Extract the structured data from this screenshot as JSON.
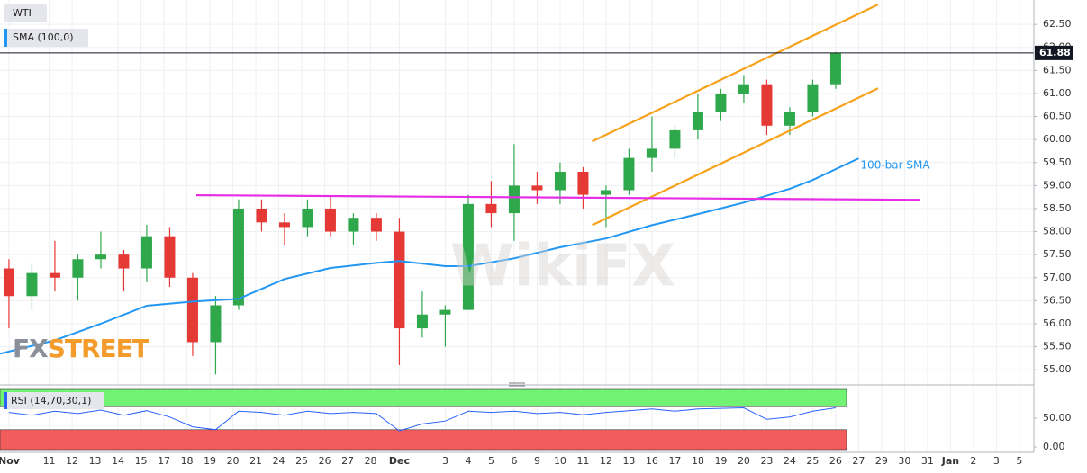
{
  "chart_data": [
    {
      "type": "candlestick",
      "title": "WTI",
      "x": [
        0,
        1,
        2,
        3,
        4,
        5,
        6,
        7,
        8,
        9,
        10,
        11,
        12,
        13,
        14,
        15,
        16,
        17,
        18,
        19,
        20,
        21,
        22,
        23,
        24,
        25,
        26,
        27,
        28,
        29,
        30,
        31,
        32,
        33,
        34,
        35,
        36
      ],
      "open": [
        57.2,
        56.6,
        57.1,
        57.0,
        57.4,
        57.5,
        57.2,
        57.9,
        57.0,
        55.6,
        56.4,
        58.5,
        58.2,
        58.1,
        58.5,
        58.0,
        58.3,
        58.0,
        55.9,
        56.2,
        56.3,
        58.6,
        58.4,
        59.0,
        58.9,
        59.3,
        58.8,
        58.9,
        59.6,
        59.8,
        60.2,
        60.6,
        61.0,
        61.2,
        60.3,
        60.6,
        61.2
      ],
      "high": [
        57.4,
        57.3,
        57.8,
        57.5,
        58.0,
        57.6,
        58.15,
        58.1,
        57.1,
        56.6,
        58.7,
        58.7,
        58.4,
        58.7,
        58.75,
        58.4,
        58.4,
        58.3,
        56.7,
        56.4,
        58.8,
        59.1,
        59.9,
        59.3,
        59.5,
        59.4,
        59.0,
        59.8,
        60.5,
        60.3,
        61.0,
        61.1,
        61.4,
        61.3,
        60.7,
        61.3,
        61.9
      ],
      "low": [
        55.9,
        56.3,
        56.7,
        56.5,
        57.2,
        56.7,
        56.9,
        56.8,
        55.3,
        54.9,
        56.3,
        58.0,
        57.7,
        57.9,
        57.9,
        57.7,
        57.8,
        55.1,
        55.7,
        55.5,
        56.3,
        58.1,
        57.8,
        58.6,
        58.6,
        58.5,
        58.1,
        58.8,
        59.3,
        59.6,
        60.0,
        60.4,
        60.8,
        60.1,
        60.1,
        60.5,
        61.1
      ],
      "close": [
        56.6,
        57.1,
        57.0,
        57.4,
        57.5,
        57.2,
        57.9,
        57.0,
        55.6,
        56.4,
        58.5,
        58.2,
        58.1,
        58.5,
        58.0,
        58.3,
        58.0,
        55.9,
        56.2,
        56.3,
        58.6,
        58.4,
        59.0,
        58.9,
        59.3,
        58.8,
        58.9,
        59.6,
        59.8,
        60.2,
        60.6,
        61.0,
        61.2,
        60.3,
        60.6,
        61.2,
        61.88
      ],
      "up_color": "#2ea84a",
      "down_color": "#e53935",
      "overlays": [
        {
          "name": "SMA (100,0)",
          "annotation": "100-bar SMA",
          "color": "#2196f3",
          "x": [
            -0.39,
            2,
            4,
            6,
            8,
            10,
            12,
            14,
            16,
            17,
            19,
            20,
            22,
            24,
            26,
            28,
            30,
            32,
            34,
            35,
            37
          ],
          "values": [
            55.35,
            55.64,
            56.0,
            56.39,
            56.48,
            56.54,
            56.97,
            57.21,
            57.32,
            57.36,
            57.25,
            57.25,
            57.42,
            57.66,
            57.85,
            58.14,
            58.38,
            58.63,
            58.93,
            59.12,
            59.59
          ]
        }
      ],
      "trendlines": [
        {
          "color": "#f7a21b",
          "x": [
            25.4,
            37.84
          ],
          "values": [
            59.96,
            62.93
          ]
        },
        {
          "color": "#f7a21b",
          "x": [
            25.4,
            37.84
          ],
          "values": [
            58.14,
            61.11
          ]
        },
        {
          "color": "#e62ee6",
          "x": [
            8.16,
            39.69
          ],
          "values": [
            58.79,
            58.69
          ]
        }
      ],
      "last_price": 61.88,
      "last_price_color": "#131722",
      "brand": {
        "prefix": "FX",
        "suffix": "STREET"
      },
      "watermark": "WikiFX",
      "xlim": [
        -0.39,
        44.63
      ],
      "ylim": [
        54.73,
        63.03
      ],
      "grid": true,
      "yticks": [
        {
          "value": 55,
          "label": "55.00"
        },
        {
          "value": 55.5,
          "label": "55.50"
        },
        {
          "value": 56,
          "label": "56.00"
        },
        {
          "value": 56.5,
          "label": "56.50"
        },
        {
          "value": 57,
          "label": "57.00"
        },
        {
          "value": 57.5,
          "label": "57.50"
        },
        {
          "value": 58,
          "label": "58.00"
        },
        {
          "value": 58.5,
          "label": "58.50"
        },
        {
          "value": 59,
          "label": "59.00"
        },
        {
          "value": 59.5,
          "label": "59.50"
        },
        {
          "value": 60,
          "label": "60.00"
        },
        {
          "value": 60.5,
          "label": "60.50"
        },
        {
          "value": 61,
          "label": "61.00"
        },
        {
          "value": 61.5,
          "label": "61.50"
        },
        {
          "value": 62,
          "label": "62.00"
        },
        {
          "value": 62.5,
          "label": "62.50"
        }
      ],
      "xticks": [
        {
          "value": 0,
          "label": "Nov"
        },
        {
          "value": 1.75,
          "label": "11"
        },
        {
          "value": 2.75,
          "label": "12"
        },
        {
          "value": 3.75,
          "label": "13"
        },
        {
          "value": 4.75,
          "label": "14"
        },
        {
          "value": 5.75,
          "label": "15"
        },
        {
          "value": 6.75,
          "label": "17"
        },
        {
          "value": 7.75,
          "label": "18"
        },
        {
          "value": 8.75,
          "label": "19"
        },
        {
          "value": 9.75,
          "label": "20"
        },
        {
          "value": 10.75,
          "label": "21"
        },
        {
          "value": 11.75,
          "label": "24"
        },
        {
          "value": 12.75,
          "label": "25"
        },
        {
          "value": 13.75,
          "label": "26"
        },
        {
          "value": 14.75,
          "label": "27"
        },
        {
          "value": 15.75,
          "label": "28"
        },
        {
          "value": 17,
          "label": "Dec"
        },
        {
          "value": 19,
          "label": "3"
        },
        {
          "value": 20,
          "label": "4"
        },
        {
          "value": 21,
          "label": "5"
        },
        {
          "value": 22,
          "label": "6"
        },
        {
          "value": 23,
          "label": "9"
        },
        {
          "value": 24,
          "label": "10"
        },
        {
          "value": 25,
          "label": "11"
        },
        {
          "value": 26,
          "label": "12"
        },
        {
          "value": 27,
          "label": "13"
        },
        {
          "value": 28,
          "label": "16"
        },
        {
          "value": 29,
          "label": "17"
        },
        {
          "value": 30,
          "label": "18"
        },
        {
          "value": 31,
          "label": "19"
        },
        {
          "value": 32,
          "label": "20"
        },
        {
          "value": 33,
          "label": "23"
        },
        {
          "value": 34,
          "label": "24"
        },
        {
          "value": 35,
          "label": "25"
        },
        {
          "value": 36,
          "label": "26"
        },
        {
          "value": 37,
          "label": "27"
        },
        {
          "value": 38,
          "label": "29"
        },
        {
          "value": 39,
          "label": "30"
        },
        {
          "value": 40,
          "label": "31"
        },
        {
          "value": 41,
          "label": "Jan"
        },
        {
          "value": 42,
          "label": "2"
        },
        {
          "value": 43,
          "label": "3"
        },
        {
          "value": 44,
          "label": "5"
        }
      ]
    },
    {
      "type": "line",
      "title": "RSI (14,70,30,1)",
      "x": [
        0,
        1,
        2,
        3,
        4,
        5,
        6,
        7,
        8,
        9,
        10,
        11,
        12,
        13,
        14,
        15,
        16,
        17,
        18,
        19,
        20,
        21,
        22,
        23,
        24,
        25,
        26,
        27,
        28,
        29,
        30,
        31,
        32,
        33,
        34,
        35,
        36
      ],
      "series": [
        {
          "color": "#2962ff",
          "values": [
            60,
            55,
            62,
            58,
            64,
            55,
            63,
            52,
            35,
            30,
            62,
            60,
            55,
            62,
            58,
            60,
            58,
            28,
            40,
            45,
            62,
            60,
            62,
            58,
            60,
            56,
            60,
            63,
            66,
            62,
            66,
            67,
            68,
            48,
            52,
            62,
            68
          ]
        }
      ],
      "bands": [
        {
          "from": 70,
          "to": 100,
          "color": "#72f272"
        },
        {
          "from": -4.7,
          "to": 30,
          "color": "#f25c5c"
        }
      ],
      "ylim": [
        -9.4,
        104.7
      ],
      "yticks": [
        {
          "value": 50,
          "label": "50.00"
        },
        {
          "value": 0,
          "label": "0.00"
        }
      ]
    }
  ]
}
